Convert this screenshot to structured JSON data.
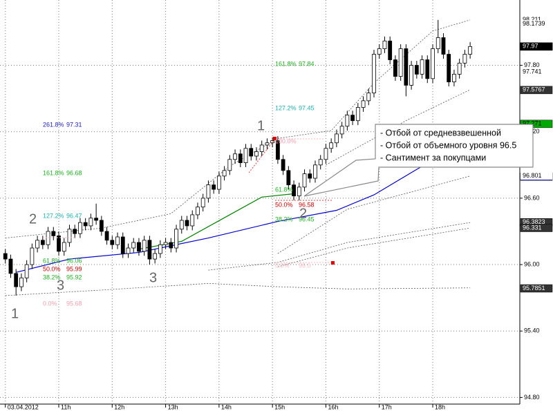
{
  "chart_data": {
    "type": "candlestick",
    "ylim": [
      94.74,
      98.39
    ],
    "yticks": [
      {
        "value": 94.8,
        "label": "94.80"
      },
      {
        "value": 95.4,
        "label": "95.40"
      },
      {
        "value": 96.0,
        "label": "96.00"
      },
      {
        "value": 96.6,
        "label": "96.60"
      },
      {
        "value": 97.2,
        "label": "97.20"
      },
      {
        "value": 97.8,
        "label": "97.80"
      }
    ],
    "xlim": [
      -1,
      96.3
    ],
    "xticks": [
      {
        "value": 0,
        "label": "03.04.2012"
      },
      {
        "value": 10,
        "label": "11h"
      },
      {
        "value": 20,
        "label": "12h"
      },
      {
        "value": 30,
        "label": "13h"
      },
      {
        "value": 40,
        "label": "14h"
      },
      {
        "value": 50,
        "label": "15h"
      },
      {
        "value": 60,
        "label": "16h"
      },
      {
        "value": 70,
        "label": "17h"
      },
      {
        "value": 80,
        "label": "18h"
      }
    ],
    "grid": true,
    "open": [
      96.1,
      96.05,
      95.92,
      95.8,
      95.88,
      96.0,
      96.15,
      96.22,
      96.18,
      96.3,
      96.26,
      96.12,
      96.2,
      96.32,
      96.28,
      96.38,
      96.35,
      96.42,
      96.4,
      96.3,
      96.22,
      96.18,
      96.25,
      96.1,
      96.15,
      96.2,
      96.12,
      96.22,
      96.05,
      96.1,
      96.18,
      96.2,
      96.15,
      96.32,
      96.4,
      96.35,
      96.45,
      96.52,
      96.6,
      96.72,
      96.68,
      96.8,
      96.85,
      96.95,
      97.0,
      96.92,
      97.05,
      96.98,
      97.02,
      97.08,
      97.1,
      97.12,
      96.95,
      96.85,
      96.72,
      96.62,
      96.7,
      96.82,
      96.78,
      96.9,
      96.95,
      97.05,
      97.1,
      97.18,
      97.25,
      97.35,
      97.3,
      97.42,
      97.48,
      97.55,
      97.9,
      97.95,
      98.02,
      97.85,
      97.7,
      97.95,
      97.62,
      97.8,
      97.72,
      97.85,
      97.68,
      97.95,
      98.05,
      97.9,
      97.65,
      97.72,
      97.82,
      97.9
    ],
    "high": [
      96.14,
      96.09,
      95.96,
      95.92,
      96.04,
      96.19,
      96.26,
      96.26,
      96.34,
      96.34,
      96.3,
      96.24,
      96.36,
      96.36,
      96.42,
      96.42,
      96.46,
      96.55,
      96.44,
      96.34,
      96.26,
      96.29,
      96.29,
      96.19,
      96.24,
      96.24,
      96.26,
      96.26,
      96.14,
      96.22,
      96.24,
      96.24,
      96.36,
      96.44,
      96.44,
      96.49,
      96.56,
      96.64,
      96.76,
      96.76,
      96.84,
      96.89,
      96.99,
      97.04,
      97.04,
      97.09,
      97.09,
      97.06,
      97.12,
      97.14,
      97.15,
      97.16,
      96.99,
      96.89,
      96.76,
      96.74,
      96.86,
      96.86,
      96.94,
      96.99,
      97.09,
      97.14,
      97.22,
      97.29,
      97.39,
      97.39,
      97.46,
      97.52,
      97.59,
      97.94,
      97.99,
      98.06,
      98.06,
      97.89,
      97.99,
      97.99,
      97.84,
      97.84,
      97.89,
      97.89,
      97.99,
      98.21,
      98.09,
      97.94,
      97.76,
      97.86,
      97.94,
      98.01
    ],
    "low": [
      96.01,
      95.88,
      95.72,
      95.76,
      95.84,
      95.96,
      96.11,
      96.14,
      96.14,
      96.22,
      96.08,
      96.08,
      96.16,
      96.24,
      96.24,
      96.31,
      96.31,
      96.36,
      96.26,
      96.18,
      96.14,
      96.14,
      96.06,
      96.06,
      96.11,
      96.08,
      96.08,
      96.0,
      96.01,
      96.06,
      96.14,
      96.11,
      96.11,
      96.28,
      96.31,
      96.31,
      96.41,
      96.48,
      96.56,
      96.64,
      96.64,
      96.76,
      96.81,
      96.91,
      96.88,
      96.88,
      96.94,
      96.94,
      96.98,
      97.04,
      97.06,
      96.91,
      96.81,
      96.68,
      96.58,
      96.58,
      96.66,
      96.74,
      96.74,
      96.86,
      96.91,
      97.01,
      97.06,
      97.14,
      97.21,
      97.26,
      97.26,
      97.38,
      97.44,
      97.51,
      97.86,
      97.91,
      97.81,
      97.66,
      97.66,
      97.52,
      97.58,
      97.68,
      97.68,
      97.64,
      97.64,
      97.91,
      97.86,
      97.61,
      97.61,
      97.68,
      97.78,
      97.86
    ],
    "close": [
      96.05,
      95.92,
      95.8,
      95.88,
      96.0,
      96.15,
      96.22,
      96.18,
      96.3,
      96.26,
      96.12,
      96.2,
      96.32,
      96.28,
      96.38,
      96.35,
      96.42,
      96.4,
      96.3,
      96.22,
      96.18,
      96.25,
      96.1,
      96.15,
      96.2,
      96.12,
      96.22,
      96.05,
      96.1,
      96.18,
      96.2,
      96.15,
      96.32,
      96.4,
      96.35,
      96.45,
      96.52,
      96.6,
      96.72,
      96.68,
      96.8,
      96.85,
      96.95,
      97.0,
      96.92,
      97.05,
      96.98,
      97.02,
      97.08,
      97.1,
      97.12,
      96.95,
      96.85,
      96.72,
      96.62,
      96.7,
      96.82,
      96.78,
      96.9,
      96.95,
      97.05,
      97.1,
      97.18,
      97.25,
      97.35,
      97.3,
      97.42,
      97.48,
      97.55,
      97.9,
      97.95,
      98.02,
      97.85,
      97.7,
      97.95,
      97.62,
      97.8,
      97.72,
      97.85,
      97.68,
      97.95,
      98.05,
      97.9,
      97.65,
      97.72,
      97.82,
      97.9,
      97.97
    ],
    "series": [
      {
        "color": "#0000cc",
        "dash": false,
        "x": [
          2,
          12,
          25,
          38,
          51,
          62,
          69,
          77,
          82
        ],
        "values": [
          95.93,
          96.05,
          96.11,
          96.24,
          96.39,
          96.49,
          96.63,
          96.86,
          97.0
        ]
      },
      {
        "color": "#008000",
        "dash": false,
        "x": [
          25,
          33,
          42,
          48,
          54
        ],
        "values": [
          96.14,
          96.21,
          96.45,
          96.61,
          96.64
        ]
      },
      {
        "color": "#555555",
        "dash": true,
        "x": [
          0,
          18,
          31,
          42,
          51,
          61,
          69,
          80,
          87
        ],
        "values": [
          96.24,
          96.33,
          96.46,
          96.89,
          97.14,
          97.21,
          97.64,
          98.11,
          98.21
        ]
      },
      {
        "color": "#555555",
        "dash": true,
        "x": [
          0,
          18,
          38,
          51,
          64,
          87
        ],
        "values": [
          95.72,
          95.77,
          95.83,
          95.8,
          95.78,
          95.79
        ]
      },
      {
        "color": "#555555",
        "dash": true,
        "x": [
          38,
          51,
          64,
          87
        ],
        "values": [
          95.95,
          96.02,
          96.2,
          96.38
        ]
      },
      {
        "color": "#555555",
        "dash": true,
        "x": [
          51,
          64,
          87
        ],
        "values": [
          95.98,
          96.15,
          96.33
        ]
      },
      {
        "color": "#555555",
        "dash": true,
        "x": [
          51,
          64,
          87
        ],
        "values": [
          96.1,
          96.5,
          96.8
        ]
      },
      {
        "color": "#555555",
        "dash": true,
        "x": [
          60,
          75,
          87
        ],
        "values": [
          96.9,
          97.3,
          97.58
        ]
      }
    ],
    "price_tags": [
      {
        "value": 98.211,
        "bg": "#ffffff",
        "fg": "#000"
      },
      {
        "value": 98.1739,
        "bg": "#ffffff",
        "fg": "#000"
      },
      {
        "value": 97.97,
        "bg": "#000000",
        "fg": "#fff"
      },
      {
        "value": 97.97,
        "bg": "#000000",
        "fg": "#fff"
      },
      {
        "value": 97.97,
        "bg": "#000000",
        "fg": "#fff"
      },
      {
        "value": 97.741,
        "bg": "#ffffff",
        "fg": "#000"
      },
      {
        "value": 97.5767,
        "bg": "#333333",
        "fg": "#fff"
      },
      {
        "value": 97.271,
        "bg": "#00aa00",
        "fg": "#000"
      },
      {
        "value": 96.795,
        "bg": "#0000cc",
        "fg": "#fff"
      },
      {
        "value": 96.801,
        "bg": "#ffffff",
        "fg": "#000"
      },
      {
        "value": 96.3823,
        "bg": "#333333",
        "fg": "#fff"
      },
      {
        "value": 96.331,
        "bg": "#333333",
        "fg": "#fff"
      },
      {
        "value": 95.7851,
        "bg": "#333333",
        "fg": "#fff"
      }
    ]
  },
  "fib_labels": [
    {
      "level": "261.8%",
      "price": "97.31",
      "color": "#2020c0"
    },
    {
      "level": "161.8%",
      "price": "96.68",
      "color": "#20b020"
    },
    {
      "level": "127.2%",
      "price": "96.47",
      "color": "#20b0b0"
    },
    {
      "level": "61.8%",
      "price": "96.06",
      "color": "#20b020"
    },
    {
      "level": "50.0%",
      "price": "95.99",
      "color": "#d00000"
    },
    {
      "level": "38.2%",
      "price": "95.92",
      "color": "#20b020"
    },
    {
      "level": "0.0%",
      "price": "95.68",
      "color": "#f0a0b0"
    },
    {
      "level": "161.8%",
      "price": "97.84",
      "color": "#20b020"
    },
    {
      "level": "127.2%",
      "price": "97.45",
      "color": "#20b0b0"
    },
    {
      "level": "100.0%",
      "price": "",
      "color": "#f0a0b0"
    },
    {
      "level": "61.8%",
      "price": "",
      "color": "#20b020"
    },
    {
      "level": "50.0%",
      "price": "96.58",
      "color": "#d00000"
    },
    {
      "level": "38.2%",
      "price": "96.45",
      "color": "#20b020"
    },
    {
      "level": "0.0%",
      "price": "96.0",
      "color": "#f4c0c8"
    }
  ],
  "waves": [
    "1",
    "2",
    "3",
    "1",
    "2",
    "3"
  ],
  "callout": [
    "- Отбой от средневзвешенной",
    "- Отбой от объемного уровня 96.5",
    "- Сантимент за покупцами"
  ]
}
